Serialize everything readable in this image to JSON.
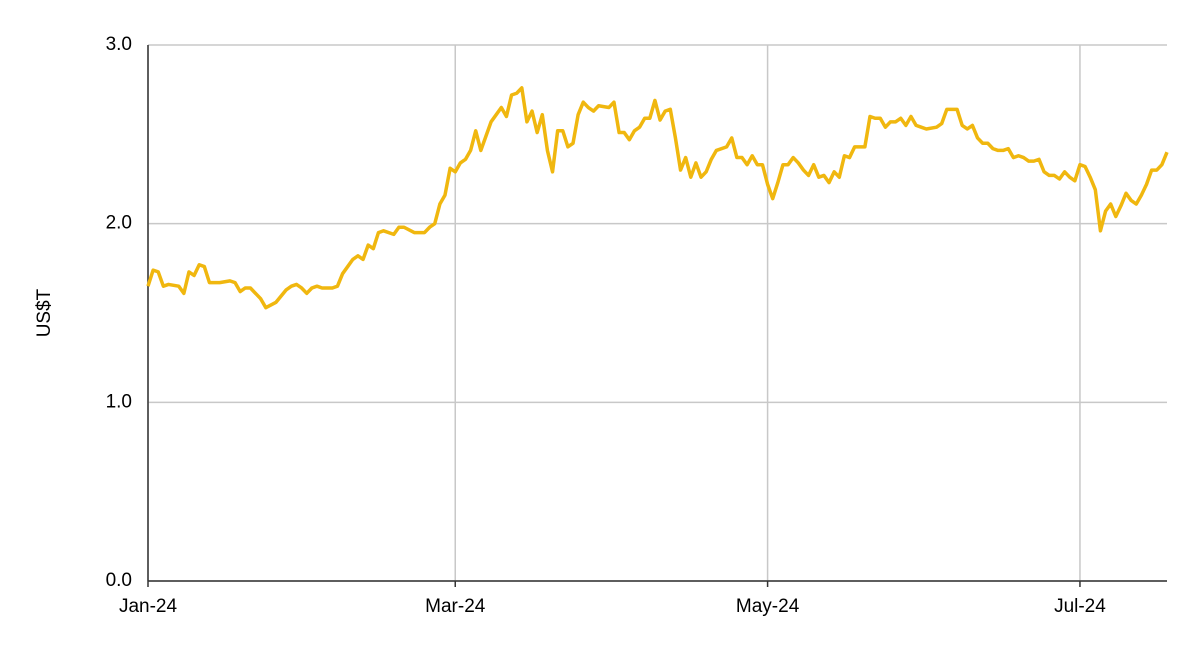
{
  "chart_data": {
    "type": "line",
    "y_label": "US$T",
    "x": [
      0,
      1,
      2,
      3,
      4,
      6,
      7,
      8,
      9,
      10,
      11,
      12,
      14,
      16,
      17,
      18,
      19,
      20,
      22,
      23,
      25,
      27,
      28,
      29,
      30,
      31,
      32,
      33,
      34,
      36,
      37,
      38,
      39,
      40,
      41,
      42,
      43,
      44,
      45,
      46,
      48,
      49,
      50,
      52,
      54,
      55,
      56,
      57,
      58,
      59,
      60,
      61,
      62,
      63,
      64,
      65,
      66,
      67,
      68,
      69,
      70,
      71,
      72,
      73,
      74,
      75,
      76,
      77,
      78,
      79,
      80,
      81,
      82,
      83,
      84,
      85,
      86,
      87,
      88,
      90,
      91,
      92,
      93,
      94,
      95,
      96,
      97,
      98,
      99,
      100,
      101,
      102,
      103,
      104,
      105,
      106,
      107,
      108,
      109,
      110,
      111,
      113,
      114,
      115,
      116,
      117,
      118,
      119,
      120,
      121,
      122,
      123,
      124,
      125,
      126,
      127,
      128,
      129,
      130,
      131,
      132,
      133,
      134,
      135,
      136,
      137,
      138,
      139,
      140,
      141,
      142,
      143,
      144,
      145,
      146,
      147,
      148,
      149,
      150,
      151,
      152,
      154,
      155,
      156,
      157,
      158,
      159,
      160,
      161,
      162,
      163,
      164,
      165,
      166,
      167,
      168,
      169,
      170,
      171,
      172,
      173,
      174,
      175,
      176,
      177,
      178,
      179,
      180,
      181,
      182,
      183,
      184,
      185,
      186,
      187,
      188,
      189,
      190,
      191,
      192,
      193,
      194,
      195,
      196,
      197,
      198,
      199
    ],
    "series": [
      {
        "color": "#f0b70f",
        "values": [
          1.65,
          1.74,
          1.73,
          1.65,
          1.66,
          1.65,
          1.61,
          1.73,
          1.71,
          1.77,
          1.76,
          1.67,
          1.67,
          1.68,
          1.67,
          1.62,
          1.64,
          1.64,
          1.58,
          1.53,
          1.56,
          1.63,
          1.65,
          1.66,
          1.64,
          1.61,
          1.64,
          1.65,
          1.64,
          1.64,
          1.65,
          1.72,
          1.76,
          1.8,
          1.82,
          1.8,
          1.88,
          1.86,
          1.95,
          1.96,
          1.94,
          1.98,
          1.98,
          1.95,
          1.95,
          1.98,
          2.0,
          2.11,
          2.16,
          2.31,
          2.29,
          2.34,
          2.36,
          2.41,
          2.52,
          2.41,
          2.49,
          2.57,
          2.61,
          2.65,
          2.6,
          2.72,
          2.73,
          2.76,
          2.57,
          2.63,
          2.51,
          2.61,
          2.41,
          2.29,
          2.52,
          2.52,
          2.43,
          2.45,
          2.61,
          2.68,
          2.65,
          2.63,
          2.66,
          2.65,
          2.68,
          2.51,
          2.51,
          2.47,
          2.52,
          2.54,
          2.59,
          2.59,
          2.69,
          2.58,
          2.63,
          2.64,
          2.48,
          2.3,
          2.37,
          2.26,
          2.34,
          2.26,
          2.29,
          2.36,
          2.41,
          2.43,
          2.48,
          2.37,
          2.37,
          2.33,
          2.38,
          2.33,
          2.33,
          2.22,
          2.14,
          2.23,
          2.33,
          2.33,
          2.37,
          2.34,
          2.3,
          2.27,
          2.33,
          2.26,
          2.27,
          2.23,
          2.29,
          2.26,
          2.38,
          2.37,
          2.43,
          2.43,
          2.43,
          2.6,
          2.59,
          2.59,
          2.54,
          2.57,
          2.57,
          2.59,
          2.55,
          2.6,
          2.55,
          2.54,
          2.53,
          2.54,
          2.56,
          2.64,
          2.64,
          2.64,
          2.55,
          2.53,
          2.55,
          2.48,
          2.45,
          2.45,
          2.42,
          2.41,
          2.41,
          2.42,
          2.37,
          2.38,
          2.37,
          2.35,
          2.35,
          2.36,
          2.29,
          2.27,
          2.27,
          2.25,
          2.29,
          2.26,
          2.24,
          2.33,
          2.32,
          2.26,
          2.19,
          1.96,
          2.07,
          2.11,
          2.04,
          2.1,
          2.17,
          2.13,
          2.11,
          2.16,
          2.22,
          2.3,
          2.3,
          2.33,
          2.4
        ]
      }
    ],
    "xlim": [
      0,
      199
    ],
    "xticks": [
      {
        "value": 0,
        "label": "Jan-24"
      },
      {
        "value": 60,
        "label": "Mar-24"
      },
      {
        "value": 121,
        "label": "May-24"
      },
      {
        "value": 182,
        "label": "Jul-24"
      }
    ],
    "ylim": [
      0,
      3
    ],
    "yticks": [
      {
        "value": 0,
        "label": "0.0"
      },
      {
        "value": 1,
        "label": "1.0"
      },
      {
        "value": 2,
        "label": "2.0"
      },
      {
        "value": 3,
        "label": "3.0"
      }
    ],
    "grid": true
  }
}
